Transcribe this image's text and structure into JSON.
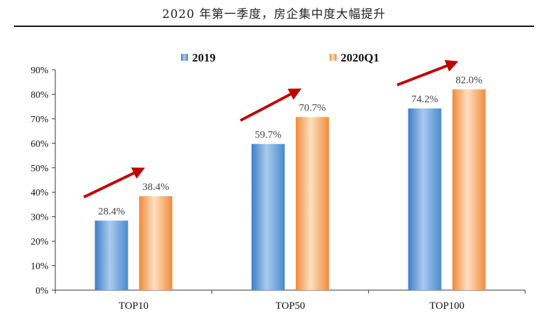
{
  "title": "2020 年第一季度，房企集中度大幅提升",
  "chart_data": {
    "type": "bar",
    "title": "2020 年第一季度，房企集中度大幅提升",
    "categories": [
      "TOP10",
      "TOP50",
      "TOP100"
    ],
    "series": [
      {
        "name": "2019",
        "values": [
          28.4,
          59.7,
          74.2
        ],
        "labels": [
          "28.4%",
          "59.7%",
          "74.2%"
        ],
        "color": "#5b9bd5"
      },
      {
        "name": "2020Q1",
        "values": [
          38.4,
          70.7,
          82.0
        ],
        "labels": [
          "38.4%",
          "70.7%",
          "82.0%"
        ],
        "color": "#f4a460"
      }
    ],
    "ylim": [
      0,
      90
    ],
    "yticks": [
      "0%",
      "10%",
      "20%",
      "30%",
      "40%",
      "50%",
      "60%",
      "70%",
      "80%",
      "90%"
    ],
    "xlabel": "",
    "ylabel": "",
    "legend": "top-center",
    "annotations": "red upward arrows above each category group indicating increase",
    "arrow_color": "#c00000"
  }
}
